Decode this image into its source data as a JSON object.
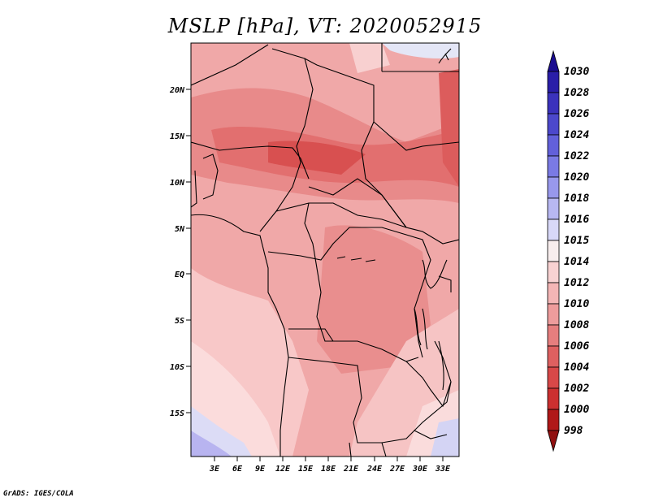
{
  "title": "MSLP [hPa], VT: 2020052915",
  "credit": "GrADS: IGES/COLA",
  "map": {
    "lat_labels": [
      "20N",
      "15N",
      "10N",
      "5N",
      "EQ",
      "5S",
      "10S",
      "15S"
    ],
    "lon_labels": [
      "3E",
      "6E",
      "9E",
      "12E",
      "15E",
      "18E",
      "21E",
      "24E",
      "27E",
      "30E",
      "33E"
    ]
  },
  "colorbar": {
    "labels": [
      "1030",
      "1028",
      "1026",
      "1024",
      "1022",
      "1020",
      "1018",
      "1016",
      "1015",
      "1014",
      "1012",
      "1010",
      "1008",
      "1006",
      "1004",
      "1002",
      "1000",
      "998"
    ],
    "colors": [
      "#1a0c90",
      "#2a1ea8",
      "#3b32bc",
      "#4c48cc",
      "#6260da",
      "#7a7ae4",
      "#9898ec",
      "#b8b8f2",
      "#d8d8f8",
      "#f8eeee",
      "#f8d2d2",
      "#f4b6b6",
      "#ee9c9c",
      "#e67e7e",
      "#de6060",
      "#d84848",
      "#cc3030",
      "#b01818",
      "#901010"
    ]
  }
}
